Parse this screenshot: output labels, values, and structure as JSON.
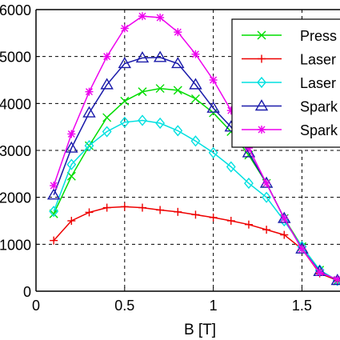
{
  "chart_data": {
    "type": "line",
    "xlabel": "B [T]",
    "ylabel": "",
    "xlim": [
      0,
      1.85
    ],
    "ylim": [
      0,
      6000
    ],
    "x_ticks": [
      0,
      0.5,
      1,
      1.5
    ],
    "x_tick_labels": [
      "0",
      "0.5",
      "1",
      "1.5"
    ],
    "y_ticks": [
      0,
      1000,
      2000,
      3000,
      4000,
      5000,
      6000
    ],
    "y_tick_labels": [
      "0",
      "1000",
      "2000",
      "3000",
      "4000",
      "5000",
      "6000"
    ],
    "grid": true,
    "legend_position": "top-right",
    "series": [
      {
        "name": "Press",
        "color": "#00dd00",
        "marker": "x",
        "x": [
          0.1,
          0.2,
          0.3,
          0.4,
          0.5,
          0.6,
          0.7,
          0.8,
          0.9,
          1.0,
          1.1,
          1.2,
          1.3,
          1.4,
          1.5,
          1.6,
          1.7,
          1.75
        ],
        "y": [
          1650,
          2450,
          3100,
          3700,
          4050,
          4250,
          4320,
          4280,
          4100,
          3800,
          3400,
          2900,
          2300,
          1550,
          950,
          450,
          220,
          170
        ]
      },
      {
        "name": "Laser",
        "color": "#ee0000",
        "marker": "plus",
        "x": [
          0.1,
          0.2,
          0.3,
          0.4,
          0.5,
          0.6,
          0.7,
          0.8,
          0.9,
          1.0,
          1.1,
          1.2,
          1.3,
          1.4,
          1.5,
          1.6,
          1.7,
          1.75
        ],
        "y": [
          1080,
          1500,
          1680,
          1780,
          1800,
          1780,
          1730,
          1690,
          1630,
          1570,
          1500,
          1420,
          1310,
          1200,
          900,
          380,
          230,
          170
        ]
      },
      {
        "name": "Laser",
        "color": "#00e0e0",
        "marker": "diamond",
        "x": [
          0.1,
          0.2,
          0.3,
          0.4,
          0.5,
          0.6,
          0.7,
          0.8,
          0.9,
          1.0,
          1.1,
          1.2,
          1.3,
          1.4,
          1.5,
          1.6,
          1.7,
          1.75
        ],
        "y": [
          1700,
          2700,
          3100,
          3400,
          3600,
          3640,
          3580,
          3420,
          3200,
          2950,
          2650,
          2300,
          2000,
          1500,
          950,
          450,
          230,
          170
        ]
      },
      {
        "name": "Spark",
        "color": "#1a1aaa",
        "marker": "triangle",
        "x": [
          0.1,
          0.2,
          0.3,
          0.4,
          0.5,
          0.6,
          0.7,
          0.8,
          0.9,
          1.0,
          1.1,
          1.2,
          1.3,
          1.4,
          1.5,
          1.6,
          1.7
        ],
        "y": [
          2050,
          3050,
          3800,
          4400,
          4850,
          4970,
          4980,
          4850,
          4400,
          3900,
          3500,
          2950,
          2300,
          1550,
          900,
          420,
          230
        ]
      },
      {
        "name": "Spark",
        "color": "#ee00ee",
        "marker": "star",
        "x": [
          0.1,
          0.2,
          0.3,
          0.4,
          0.5,
          0.6,
          0.7,
          0.8,
          0.9,
          1.0,
          1.1,
          1.2,
          1.3,
          1.4,
          1.5,
          1.6,
          1.7
        ],
        "y": [
          2250,
          3350,
          4250,
          5000,
          5600,
          5860,
          5830,
          5520,
          5050,
          4500,
          3850,
          3050,
          2300,
          1550,
          900,
          400,
          250
        ]
      }
    ]
  }
}
